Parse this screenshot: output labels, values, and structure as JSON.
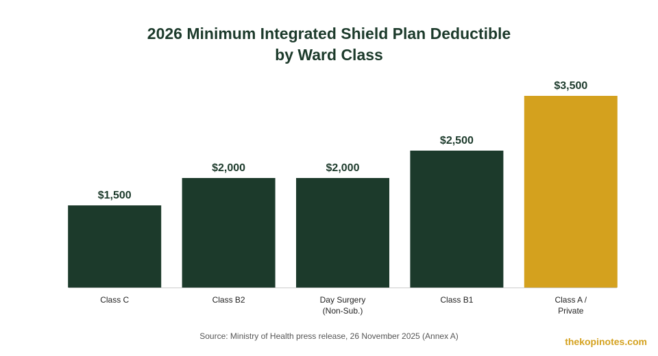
{
  "chart_data": {
    "type": "bar",
    "title_lines": [
      "2026 Minimum Integrated Shield Plan Deductible",
      "by Ward Class"
    ],
    "categories": [
      [
        "Class C"
      ],
      [
        "Class B2"
      ],
      [
        "Day Surgery",
        "(Non-Sub.)"
      ],
      [
        "Class B1"
      ],
      [
        "Class A /",
        "Private"
      ]
    ],
    "values": [
      1500,
      2000,
      2000,
      2500,
      3500
    ],
    "value_labels": [
      "$1,500",
      "$2,000",
      "$2,000",
      "$2,500",
      "$3,500"
    ],
    "highlight_index": 4,
    "ylim": [
      0,
      3500
    ],
    "xlabel": "",
    "ylabel": "",
    "grid": false,
    "legend": "none"
  },
  "colors": {
    "bar": "#1c3a2b",
    "highlight_bar": "#d4a11e",
    "title": "#1c3a2b",
    "value_label": "#1c3a2b",
    "category_label": "#222222",
    "axis_line": "#cccccc",
    "source": "#555555",
    "watermark": "#d4a11e"
  },
  "source": "Source: Ministry of Health press release, 26 November 2025 (Annex A)",
  "watermark": "thekopinotes.com"
}
